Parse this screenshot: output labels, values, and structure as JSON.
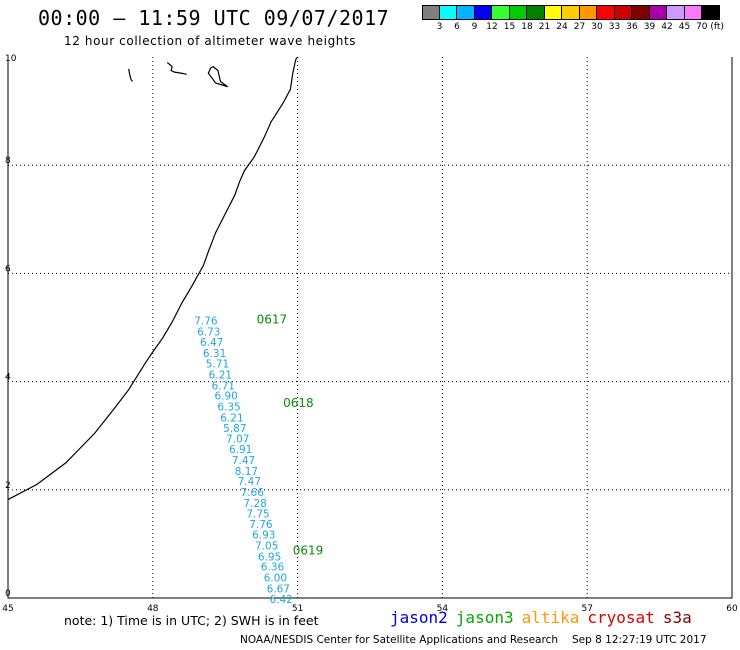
{
  "header": {
    "title": "00:00 – 11:59 UTC 09/07/2017",
    "subtitle": "12 hour collection of altimeter wave heights"
  },
  "colorbar": {
    "colors": [
      "#7f7f7f",
      "#00ffff",
      "#00b4ff",
      "#0000ff",
      "#33ff33",
      "#00cc00",
      "#008000",
      "#ffff00",
      "#ffcc00",
      "#ff9900",
      "#ff0000",
      "#cc0000",
      "#800000",
      "#aa00aa",
      "#cc99ff",
      "#ff77ff",
      "#000000"
    ],
    "labels": [
      "3",
      "6",
      "9",
      "12",
      "15",
      "18",
      "21",
      "24",
      "27",
      "30",
      "33",
      "36",
      "39",
      "42",
      "45",
      "70 (ft)"
    ]
  },
  "map": {
    "lon_range": [
      45,
      60
    ],
    "lat_range": [
      0,
      10
    ],
    "lon_ticks": [
      "45",
      "48",
      "51",
      "54",
      "57",
      "60"
    ],
    "lat_ticks": [
      "0",
      "2",
      "4",
      "6",
      "8",
      "10"
    ],
    "swh_color": "#1fa8dd",
    "pass_color": "#0a8a0a",
    "observations": [
      {
        "lon": 49.1,
        "lat": 5.13,
        "swh": "7.76"
      },
      {
        "lon": 49.16,
        "lat": 4.93,
        "swh": "6.73"
      },
      {
        "lon": 49.22,
        "lat": 4.73,
        "swh": "6.47"
      },
      {
        "lon": 49.28,
        "lat": 4.53,
        "swh": "6.31"
      },
      {
        "lon": 49.34,
        "lat": 4.33,
        "swh": "5.71"
      },
      {
        "lon": 49.4,
        "lat": 4.13,
        "swh": "6.21"
      },
      {
        "lon": 49.46,
        "lat": 3.93,
        "swh": "6.71"
      },
      {
        "lon": 49.52,
        "lat": 3.74,
        "swh": "6.90"
      },
      {
        "lon": 49.58,
        "lat": 3.54,
        "swh": "6.35"
      },
      {
        "lon": 49.64,
        "lat": 3.34,
        "swh": "6.21"
      },
      {
        "lon": 49.7,
        "lat": 3.14,
        "swh": "5.87"
      },
      {
        "lon": 49.76,
        "lat": 2.95,
        "swh": "7.07"
      },
      {
        "lon": 49.82,
        "lat": 2.75,
        "swh": "6.91"
      },
      {
        "lon": 49.88,
        "lat": 2.55,
        "swh": "7.47"
      },
      {
        "lon": 49.94,
        "lat": 2.35,
        "swh": "8.17"
      },
      {
        "lon": 50.0,
        "lat": 2.16,
        "swh": "7.47"
      },
      {
        "lon": 50.06,
        "lat": 1.96,
        "swh": "7.66"
      },
      {
        "lon": 50.12,
        "lat": 1.76,
        "swh": "7.28"
      },
      {
        "lon": 50.18,
        "lat": 1.56,
        "swh": "7.75"
      },
      {
        "lon": 50.24,
        "lat": 1.37,
        "swh": "7.76"
      },
      {
        "lon": 50.3,
        "lat": 1.17,
        "swh": "6.93"
      },
      {
        "lon": 50.36,
        "lat": 0.97,
        "swh": "7.05"
      },
      {
        "lon": 50.42,
        "lat": 0.77,
        "swh": "6.95"
      },
      {
        "lon": 50.48,
        "lat": 0.58,
        "swh": "6.36"
      },
      {
        "lon": 50.54,
        "lat": 0.38,
        "swh": "6.00"
      },
      {
        "lon": 50.6,
        "lat": 0.18,
        "swh": "6.67"
      },
      {
        "lon": 50.66,
        "lat": -0.02,
        "swh": "6.42"
      }
    ],
    "pass_labels": [
      {
        "lon": 50.15,
        "lat": 5.15,
        "text": "0617"
      },
      {
        "lon": 50.7,
        "lat": 3.6,
        "text": "0618"
      },
      {
        "lon": 50.9,
        "lat": 0.88,
        "text": "0619"
      }
    ],
    "coastline": [
      [
        45.0,
        1.82
      ],
      [
        45.6,
        2.1
      ],
      [
        46.2,
        2.5
      ],
      [
        46.8,
        3.05
      ],
      [
        47.2,
        3.5
      ],
      [
        47.5,
        3.85
      ],
      [
        47.85,
        4.35
      ],
      [
        48.0,
        4.55
      ],
      [
        48.2,
        4.8
      ],
      [
        48.4,
        5.1
      ],
      [
        48.6,
        5.45
      ],
      [
        48.8,
        5.75
      ],
      [
        49.05,
        6.15
      ],
      [
        49.15,
        6.4
      ],
      [
        49.3,
        6.75
      ],
      [
        49.5,
        7.1
      ],
      [
        49.7,
        7.45
      ],
      [
        49.8,
        7.7
      ],
      [
        49.9,
        7.9
      ],
      [
        50.1,
        8.15
      ],
      [
        50.3,
        8.5
      ],
      [
        50.45,
        8.8
      ],
      [
        50.7,
        9.15
      ],
      [
        50.85,
        9.4
      ],
      [
        50.9,
        9.7
      ],
      [
        50.96,
        9.95
      ],
      [
        51.0,
        10.0
      ]
    ],
    "islands": [
      [
        [
          47.5,
          9.78
        ],
        [
          47.52,
          9.68
        ],
        [
          47.55,
          9.58
        ],
        [
          47.58,
          9.55
        ]
      ],
      [
        [
          48.3,
          9.9
        ],
        [
          48.4,
          9.82
        ],
        [
          48.38,
          9.75
        ],
        [
          48.45,
          9.72
        ],
        [
          48.6,
          9.7
        ],
        [
          48.7,
          9.68
        ]
      ],
      [
        [
          49.2,
          9.8
        ],
        [
          49.15,
          9.7
        ],
        [
          49.22,
          9.62
        ],
        [
          49.3,
          9.52
        ],
        [
          49.45,
          9.48
        ],
        [
          49.55,
          9.45
        ],
        [
          49.4,
          9.55
        ],
        [
          49.35,
          9.75
        ],
        [
          49.25,
          9.82
        ],
        [
          49.2,
          9.8
        ]
      ]
    ]
  },
  "note": "note: 1) Time is in UTC; 2) SWH is in feet",
  "legend": [
    {
      "label": "jason2",
      "color": "#0000dd"
    },
    {
      "label": "jason3",
      "color": "#00aa00"
    },
    {
      "label": "altika",
      "color": "#ff9900"
    },
    {
      "label": "cryosat",
      "color": "#dd0000"
    },
    {
      "label": "s3a",
      "color": "#880000"
    }
  ],
  "footer": {
    "org": "NOAA/NESDIS Center for Satellite Applications and Research",
    "timestamp": "Sep  8 12:27:19 UTC 2017"
  }
}
